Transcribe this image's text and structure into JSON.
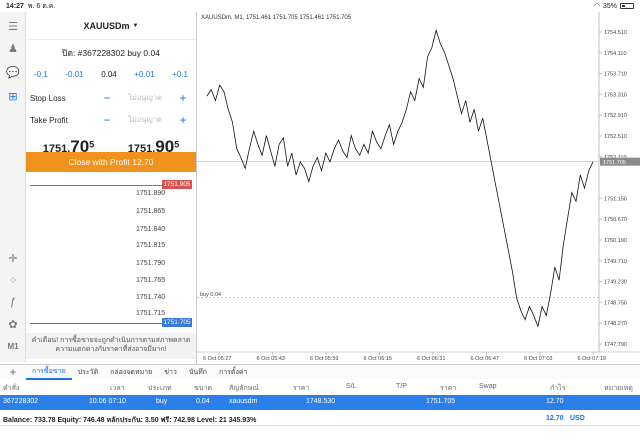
{
  "status": {
    "time": "14:27",
    "date": "พ. 6 ต.ค.",
    "battery": "35%"
  },
  "order": {
    "symbol": "XAUUSDm",
    "close_title": "ปิด: #367228302 buy 0.04",
    "steps": [
      "-0.1",
      "-0.01",
      "0.04",
      "+0.01",
      "+0.1"
    ],
    "stop_loss": {
      "label": "Stop Loss",
      "placeholder": "ไม่อนุญาต"
    },
    "take_profit": {
      "label": "Take Profit",
      "placeholder": "ไม่อนุญาต"
    },
    "bid": {
      "main": "1751.",
      "big": "70",
      "sup": "5"
    },
    "ask": {
      "main": "1751.",
      "big": "90",
      "sup": "5"
    },
    "close_button": "Close with Profit 12.70"
  },
  "depth": {
    "ask_price": "1751.905",
    "bid_price": "1751.705",
    "levels": [
      "1751.890",
      "1751.865",
      "1751.840",
      "1751.815",
      "1751.790",
      "1751.765",
      "1751.740",
      "1751.715"
    ]
  },
  "warning": "คำเตือน! การซื้อขายจะถูกดำเนินการตามสภาพตลาด ความแตกต่างกับราคาที่ส่งอาจมีมาก!",
  "chart": {
    "title": "XAUUSDm, M1, 1751.461 1751.705 1751.461 1751.705",
    "price_labels": [
      "1754.510",
      "1754.110",
      "1753.710",
      "1753.310",
      "1752.910",
      "1752.510",
      "1752.110",
      "1751.705",
      "1751.150",
      "1750.670",
      "1750.190",
      "1749.710",
      "1749.230",
      "1748.750",
      "1748.270",
      "1747.790"
    ],
    "current_price": "1751.705",
    "order_line_label": "buy 0.04",
    "time_labels": [
      "6 Oct 05:27",
      "6 Oct 05:43",
      "6 Oct 05:59",
      "6 Oct 06:15",
      "6 Oct 06:31",
      "6 Oct 06:47",
      "6 Oct 07:03",
      "6 Oct 07:19"
    ]
  },
  "chart_data": {
    "type": "line",
    "title": "XAUUSDm, M1, 1751.461 1751.705 1751.461 1751.705",
    "xlabel": "",
    "ylabel": "",
    "ylim": [
      1747.5,
      1754.8
    ],
    "x_ticks": [
      "6 Oct 05:27",
      "6 Oct 05:43",
      "6 Oct 05:59",
      "6 Oct 06:15",
      "6 Oct 06:31",
      "6 Oct 06:47",
      "6 Oct 07:03",
      "6 Oct 07:19"
    ],
    "y": [
      1753.2,
      1753.35,
      1753.1,
      1753.45,
      1753.3,
      1752.9,
      1752.6,
      1752.0,
      1751.8,
      1751.55,
      1752.0,
      1752.4,
      1752.1,
      1751.85,
      1752.3,
      1751.95,
      1751.6,
      1752.1,
      1752.25,
      1751.6,
      1751.9,
      1751.4,
      1751.7,
      1751.55,
      1751.25,
      1751.6,
      1751.8,
      1751.5,
      1751.9,
      1751.7,
      1752.0,
      1752.2,
      1751.95,
      1751.8,
      1752.3,
      1752.0,
      1751.85,
      1752.1,
      1751.9,
      1752.4,
      1752.15,
      1752.0,
      1752.3,
      1752.55,
      1752.1,
      1752.4,
      1752.6,
      1752.9,
      1753.3,
      1753.1,
      1753.6,
      1753.4,
      1754.1,
      1754.3,
      1754.7,
      1754.4,
      1754.2,
      1753.9,
      1753.6,
      1753.2,
      1752.8,
      1753.1,
      1752.6,
      1752.9,
      1752.4,
      1752.7,
      1752.2,
      1751.7,
      1751.2,
      1750.7,
      1750.2,
      1749.7,
      1749.2,
      1748.6,
      1748.3,
      1748.1,
      1748.4,
      1748.2,
      1747.95,
      1748.4,
      1748.2,
      1748.7,
      1749.3,
      1749.0,
      1749.8,
      1750.4,
      1751.0,
      1750.8,
      1751.4,
      1751.1,
      1751.5,
      1751.705
    ],
    "order_level": 1748.6,
    "current_price": 1751.705,
    "grid": false
  },
  "tabs": [
    "การซื้อขาย",
    "ประวัติ",
    "กล่องจดหมาย",
    "ข่าว",
    "บันทึก",
    "การตั้งค่า"
  ],
  "table": {
    "headers": [
      "คำสั่ง",
      "เวลา",
      "ประเภท",
      "ขนาด",
      "สัญลักษณ์",
      "ราคา",
      "S/L",
      "T/P",
      "ราคา",
      "Swap",
      "กำไร",
      "หมายเหตุ"
    ],
    "row": [
      "367228302",
      "10.06 07:10",
      "buy",
      "0.04",
      "xauusdm",
      "1748.530",
      "",
      "",
      "1751.705",
      "",
      "12.70",
      ""
    ]
  },
  "summary": {
    "text": "Balance: 733.78 Equity: 746.48 หลักประกัน: 3.50 ฟรี: 742.98 Level: 21 345.93%",
    "profit": "12.70",
    "currency": "USD"
  },
  "colors": {
    "accent": "#1a73e8",
    "close_button": "#f0931e",
    "ask": "#d9534f",
    "bid": "#3a7bd5"
  }
}
